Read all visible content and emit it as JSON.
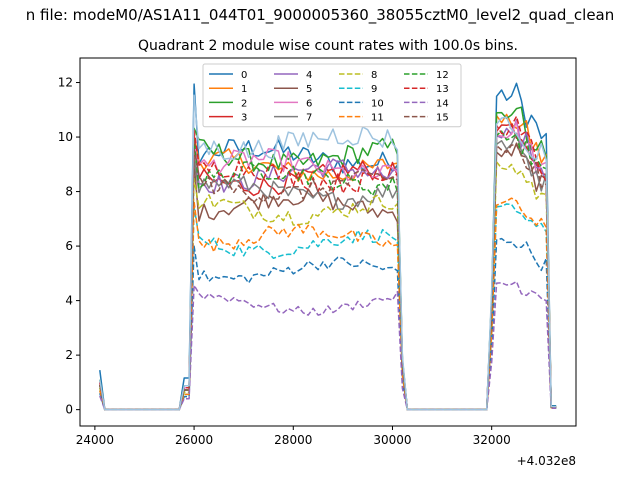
{
  "figure": {
    "suptitle": "n file: modeM0/AS1A11_044T01_9000005360_38055cztM0_level2_quad_clean",
    "title": "Quadrant 2 module wise count rates with 100.0s bins.",
    "offset_label": "+4.032e8"
  },
  "chart_data": {
    "type": "line",
    "title": "Quadrant 2 module wise count rates with 100.0s bins.",
    "xlabel": "",
    "ylabel": "",
    "x_offset": 403200000,
    "xlim": [
      23700,
      33700
    ],
    "ylim": [
      -0.6,
      12.9
    ],
    "xticks": [
      24000,
      26000,
      28000,
      30000,
      32000
    ],
    "xtick_labels": [
      "24000",
      "26000",
      "28000",
      "30000",
      "32000"
    ],
    "yticks": [
      0,
      2,
      4,
      6,
      8,
      10,
      12
    ],
    "ytick_labels": [
      "0",
      "2",
      "4",
      "6",
      "8",
      "10",
      "12"
    ],
    "grid": false,
    "legend_placement": "upper-center",
    "bin_seconds": 100,
    "segments": [
      {
        "start": 24050,
        "end": 24150
      },
      {
        "start": 24250,
        "end": 25750
      },
      {
        "start": 25850,
        "end": 26050
      },
      {
        "start": 26150,
        "end": 30050
      },
      {
        "start": 30150,
        "end": 30250
      },
      {
        "start": 30350,
        "end": 31950
      },
      {
        "start": 32050,
        "end": 32150
      },
      {
        "start": 32250,
        "end": 33150
      },
      {
        "start": 33250,
        "end": 33300
      }
    ],
    "series": [
      {
        "name": "0",
        "color": "#1f77b4",
        "dash": "solid",
        "plateau": 9.3,
        "peak2": 11.5,
        "start": 1.45,
        "peak": 11.8
      },
      {
        "name": "1",
        "color": "#ff7f0e",
        "dash": "solid",
        "plateau": 8.9,
        "peak2": 10.6,
        "start": 1.0,
        "peak": 10.1
      },
      {
        "name": "2",
        "color": "#2ca02c",
        "dash": "solid",
        "plateau": 9.3,
        "peak2": 10.9,
        "start": 1.1,
        "peak": 10.4
      },
      {
        "name": "3",
        "color": "#d62728",
        "dash": "solid",
        "plateau": 8.5,
        "peak2": 10.4,
        "start": 1.0,
        "peak": 10.1
      },
      {
        "name": "4",
        "color": "#9467bd",
        "dash": "solid",
        "plateau": 8.6,
        "peak2": 10.2,
        "start": 1.0,
        "peak": 9.9
      },
      {
        "name": "5",
        "color": "#8c564b",
        "dash": "solid",
        "plateau": 7.5,
        "peak2": 9.4,
        "start": 0.9,
        "peak": 9.0
      },
      {
        "name": "6",
        "color": "#e377c2",
        "dash": "solid",
        "plateau": 8.9,
        "peak2": 10.1,
        "start": 1.0,
        "peak": 9.9
      },
      {
        "name": "7",
        "color": "#7f7f7f",
        "dash": "solid",
        "plateau": 8.0,
        "peak2": 9.7,
        "start": 0.9,
        "peak": 9.4
      },
      {
        "name": "8",
        "color": "#bcbd22",
        "dash": "dashed",
        "plateau": 7.4,
        "peak2": 8.9,
        "start": 0.8,
        "peak": 8.6
      },
      {
        "name": "9",
        "color": "#17becf",
        "dash": "dashed",
        "plateau": 6.1,
        "peak2": 7.4,
        "start": 0.7,
        "peak": 7.4
      },
      {
        "name": "10",
        "color": "#1f77b4",
        "dash": "dashed",
        "plateau": 5.1,
        "peak2": 6.2,
        "start": 0.6,
        "peak": 6.1
      },
      {
        "name": "11",
        "color": "#ff7f0e",
        "dash": "dashed",
        "plateau": 6.3,
        "peak2": 7.6,
        "start": 0.7,
        "peak": 7.7
      },
      {
        "name": "12",
        "color": "#2ca02c",
        "dash": "dashed",
        "plateau": 8.5,
        "peak2": 10.0,
        "start": 0.9,
        "peak": 9.9
      },
      {
        "name": "13",
        "color": "#d62728",
        "dash": "dashed",
        "plateau": 8.6,
        "peak2": 10.3,
        "start": 1.0,
        "peak": 10.1
      },
      {
        "name": "14",
        "color": "#9467bd",
        "dash": "dashed",
        "plateau": 3.9,
        "peak2": 4.6,
        "start": 0.5,
        "peak": 4.6
      },
      {
        "name": "15",
        "color": "#8c564b",
        "dash": "dashed",
        "plateau": 8.2,
        "peak2": 9.6,
        "start": 0.9,
        "peak": 9.5
      },
      {
        "name": "",
        "color": "#9ec3df",
        "dash": "solid",
        "plateau": 9.8,
        "peak2": 10.5,
        "start": 1.1,
        "peak": 11.6
      }
    ]
  }
}
